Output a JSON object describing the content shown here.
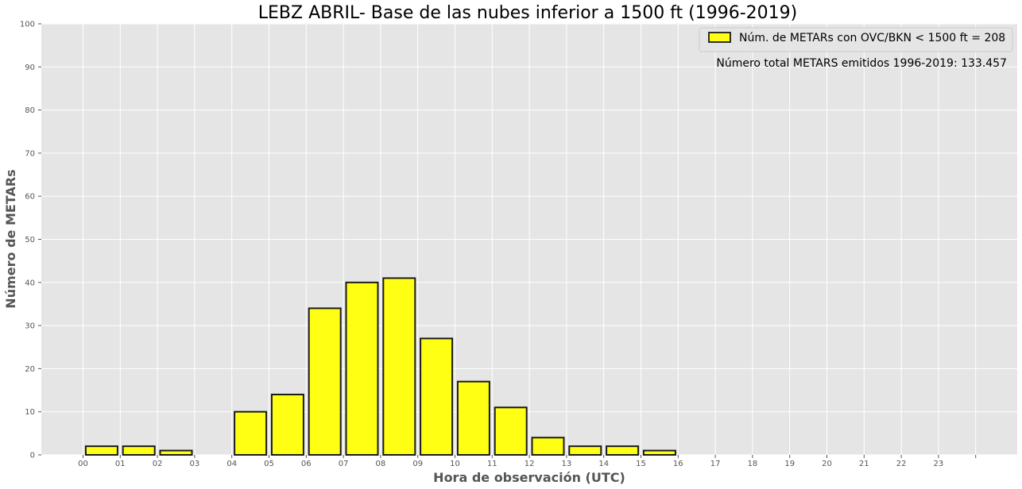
{
  "chart_data": {
    "type": "bar",
    "title": "LEBZ ABRIL- Base de las nubes inferior a 1500 ft (1996-2019)",
    "xlabel": "Hora de observación (UTC)",
    "ylabel": "Número de METARs",
    "categories": [
      "00",
      "01",
      "02",
      "03",
      "04",
      "05",
      "06",
      "07",
      "08",
      "09",
      "10",
      "11",
      "12",
      "13",
      "14",
      "15",
      "16",
      "17",
      "18",
      "19",
      "20",
      "21",
      "22",
      "23"
    ],
    "series": [
      {
        "name": "Núm. de METARs con OVC/BKN < 1500 ft = 208",
        "values": [
          2,
          2,
          1,
          0,
          10,
          14,
          34,
          40,
          41,
          27,
          17,
          11,
          4,
          2,
          2,
          1,
          0,
          0,
          0,
          0,
          0,
          0,
          0,
          0
        ]
      }
    ],
    "annotation": "Número total METARS emitidos 1996-2019: 133.457",
    "ylim": [
      0,
      100
    ],
    "yticks": [
      0,
      10,
      20,
      30,
      40,
      50,
      60,
      70,
      80,
      90,
      100
    ],
    "grid": true,
    "legend_position": "top-right",
    "colors": {
      "bar_fill": "#ffff14",
      "bar_edge": "#1a1a1a",
      "plot_background": "#e5e5e5",
      "grid": "#ffffff"
    }
  }
}
